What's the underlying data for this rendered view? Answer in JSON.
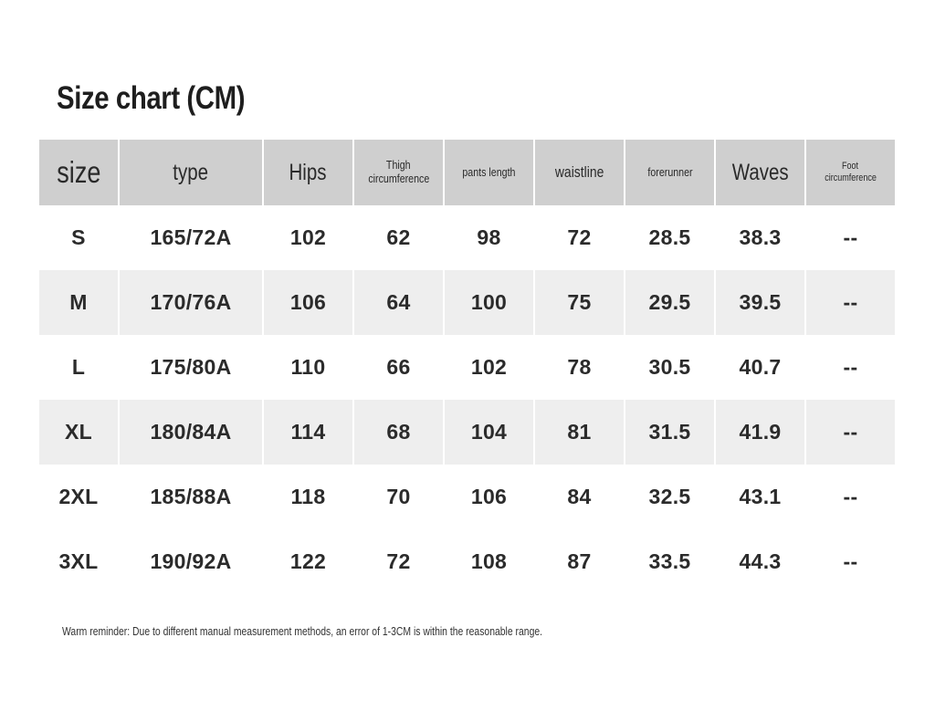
{
  "title": "Size chart (CM)",
  "header": {
    "size": "size",
    "type": "type",
    "hips": "Hips",
    "thigh_line1": "Thigh",
    "thigh_line2": "circumference",
    "pants_length": "pants length",
    "waistline": "waistline",
    "forerunner": "forerunner",
    "waves": "Waves",
    "foot_line1": "Foot",
    "foot_line2": "circumference"
  },
  "rows": [
    {
      "size": "S",
      "type": "165/72A",
      "hips": "102",
      "thigh": "62",
      "pants_length": "98",
      "waistline": "72",
      "forerunner": "28.5",
      "waves": "38.3",
      "foot": "--"
    },
    {
      "size": "M",
      "type": "170/76A",
      "hips": "106",
      "thigh": "64",
      "pants_length": "100",
      "waistline": "75",
      "forerunner": "29.5",
      "waves": "39.5",
      "foot": "--"
    },
    {
      "size": "L",
      "type": "175/80A",
      "hips": "110",
      "thigh": "66",
      "pants_length": "102",
      "waistline": "78",
      "forerunner": "30.5",
      "waves": "40.7",
      "foot": "--"
    },
    {
      "size": "XL",
      "type": "180/84A",
      "hips": "114",
      "thigh": "68",
      "pants_length": "104",
      "waistline": "81",
      "forerunner": "31.5",
      "waves": "41.9",
      "foot": "--"
    },
    {
      "size": "2XL",
      "type": "185/88A",
      "hips": "118",
      "thigh": "70",
      "pants_length": "106",
      "waistline": "84",
      "forerunner": "32.5",
      "waves": "43.1",
      "foot": "--"
    },
    {
      "size": "3XL",
      "type": "190/92A",
      "hips": "122",
      "thigh": "72",
      "pants_length": "108",
      "waistline": "87",
      "forerunner": "33.5",
      "waves": "44.3",
      "foot": "--"
    }
  ],
  "note": "Warm reminder: Due to different manual measurement methods, an error of 1-3CM is within the reasonable range.",
  "colors": {
    "header_bg": "#cfcfcf",
    "shaded_row_bg": "#eeeeee",
    "text": "#2b2b2b"
  }
}
